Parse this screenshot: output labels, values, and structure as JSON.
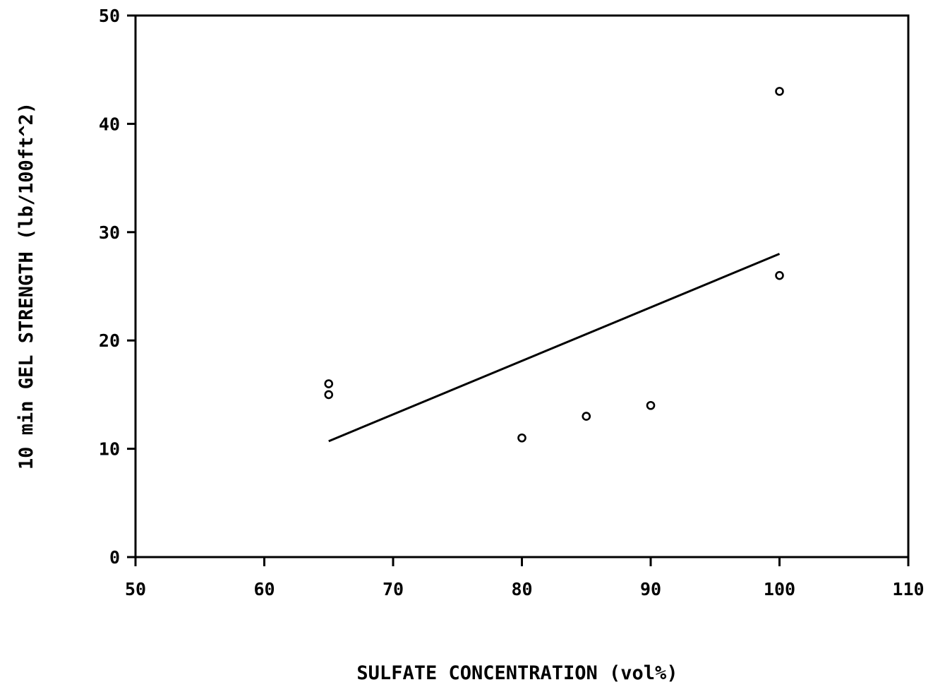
{
  "chart_data": {
    "type": "scatter",
    "title": "",
    "xlabel": "SULFATE CONCENTRATION (vol%)",
    "ylabel": "10 min GEL STRENGTH (lb/100ft^2)",
    "xlim": [
      50,
      110
    ],
    "ylim": [
      0,
      50
    ],
    "x_ticks": [
      "50",
      "60",
      "70",
      "80",
      "90",
      "100",
      "110"
    ],
    "y_ticks": [
      "0",
      "10",
      "20",
      "30",
      "40",
      "50"
    ],
    "grid": false,
    "series": [
      {
        "marker": "open-circle",
        "points": [
          {
            "x": 65,
            "y": 16
          },
          {
            "x": 65,
            "y": 15
          },
          {
            "x": 80,
            "y": 11
          },
          {
            "x": 85,
            "y": 13
          },
          {
            "x": 90,
            "y": 14
          },
          {
            "x": 100,
            "y": 43
          },
          {
            "x": 100,
            "y": 26
          }
        ]
      }
    ],
    "fit_line": {
      "type": "linear",
      "points": [
        {
          "x": 65,
          "y": 10.7
        },
        {
          "x": 100,
          "y": 28
        }
      ]
    }
  }
}
